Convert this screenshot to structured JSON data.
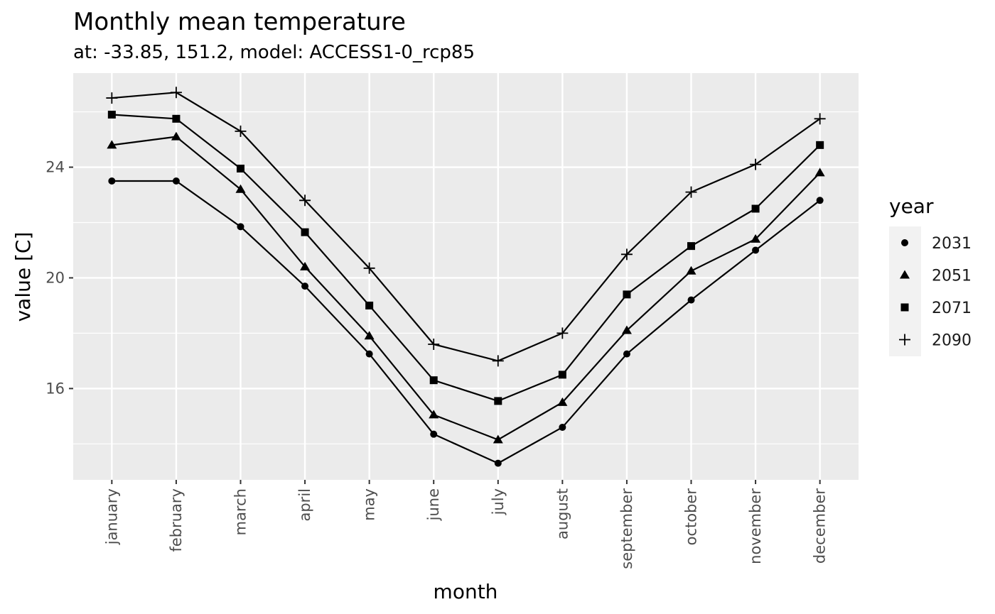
{
  "chart_data": {
    "type": "line",
    "title": "Monthly mean temperature",
    "subtitle": "at: -33.85, 151.2, model: ACCESS1-0_rcp85",
    "xlabel": "month",
    "ylabel": "value [C]",
    "categories": [
      "january",
      "february",
      "march",
      "april",
      "may",
      "june",
      "july",
      "august",
      "september",
      "october",
      "november",
      "december"
    ],
    "ylim": [
      12.7,
      27.4
    ],
    "yticks": [
      16,
      20,
      24
    ],
    "grid": true,
    "legend": {
      "title": "year",
      "position": "right"
    },
    "series": [
      {
        "name": "2031",
        "marker": "circle",
        "values": [
          23.5,
          23.5,
          21.85,
          19.7,
          17.25,
          14.35,
          13.3,
          14.6,
          17.25,
          19.2,
          21.0,
          22.8
        ]
      },
      {
        "name": "2051",
        "marker": "triangle",
        "values": [
          24.8,
          25.1,
          23.2,
          20.4,
          17.9,
          15.05,
          14.15,
          15.5,
          18.1,
          20.25,
          21.4,
          23.8
        ]
      },
      {
        "name": "2071",
        "marker": "square",
        "values": [
          25.9,
          25.75,
          23.95,
          21.65,
          19.0,
          16.3,
          15.55,
          16.5,
          19.4,
          21.15,
          22.5,
          24.8
        ]
      },
      {
        "name": "2090",
        "marker": "plus",
        "values": [
          26.5,
          26.7,
          25.3,
          22.8,
          20.35,
          17.6,
          17.0,
          18.0,
          20.85,
          23.1,
          24.1,
          25.75
        ]
      }
    ]
  }
}
